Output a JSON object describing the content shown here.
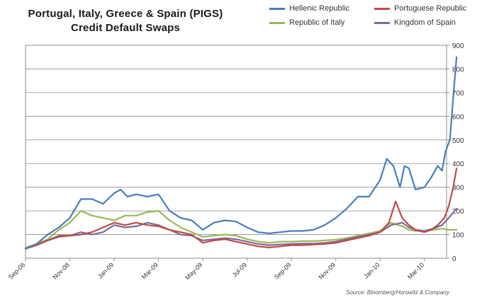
{
  "chart_data": {
    "type": "line",
    "title_line1": "Portugal, Italy, Greece & Spain (PIGS)",
    "title_line2": "Credit Default Swaps",
    "source": "Source: Bloomberg/Horowitz & Company",
    "ylim": [
      0,
      900
    ],
    "yticks": [
      0,
      100,
      200,
      300,
      400,
      500,
      600,
      700,
      800,
      900
    ],
    "xlim": [
      0,
      19
    ],
    "xticks": [
      {
        "label": "Sep-08",
        "x": 0
      },
      {
        "label": "Nov-08",
        "x": 2
      },
      {
        "label": "Jan-09",
        "x": 4
      },
      {
        "label": "Mar-09",
        "x": 6
      },
      {
        "label": "May-09",
        "x": 8
      },
      {
        "label": "Jul-09",
        "x": 10
      },
      {
        "label": "Sep-09",
        "x": 12
      },
      {
        "label": "Nov-09",
        "x": 14
      },
      {
        "label": "Jan-10",
        "x": 16
      },
      {
        "label": "Mar-10",
        "x": 18
      }
    ],
    "series": [
      {
        "name": "Hellenic Republic",
        "color": "#4a7ebb",
        "points": [
          [
            0,
            40
          ],
          [
            0.5,
            60
          ],
          [
            1,
            100
          ],
          [
            1.5,
            130
          ],
          [
            2,
            170
          ],
          [
            2.5,
            250
          ],
          [
            3,
            250
          ],
          [
            3.5,
            230
          ],
          [
            4,
            275
          ],
          [
            4.3,
            290
          ],
          [
            4.6,
            260
          ],
          [
            5,
            270
          ],
          [
            5.5,
            260
          ],
          [
            6,
            270
          ],
          [
            6.5,
            200
          ],
          [
            7,
            170
          ],
          [
            7.5,
            160
          ],
          [
            8,
            120
          ],
          [
            8.5,
            150
          ],
          [
            9,
            160
          ],
          [
            9.5,
            155
          ],
          [
            10,
            130
          ],
          [
            10.5,
            110
          ],
          [
            11,
            105
          ],
          [
            11.5,
            110
          ],
          [
            12,
            115
          ],
          [
            12.5,
            115
          ],
          [
            13,
            120
          ],
          [
            13.5,
            140
          ],
          [
            14,
            170
          ],
          [
            14.5,
            210
          ],
          [
            15,
            260
          ],
          [
            15.5,
            260
          ],
          [
            16,
            330
          ],
          [
            16.3,
            420
          ],
          [
            16.6,
            390
          ],
          [
            16.9,
            300
          ],
          [
            17.1,
            390
          ],
          [
            17.3,
            380
          ],
          [
            17.6,
            290
          ],
          [
            18,
            300
          ],
          [
            18.3,
            340
          ],
          [
            18.6,
            390
          ],
          [
            18.8,
            370
          ],
          [
            18.95,
            450
          ],
          [
            19.15,
            500
          ],
          [
            19.3,
            680
          ],
          [
            19.45,
            850
          ]
        ]
      },
      {
        "name": "Portuguese Republic",
        "color": "#be4b48",
        "points": [
          [
            0,
            40
          ],
          [
            0.5,
            55
          ],
          [
            1,
            75
          ],
          [
            1.5,
            95
          ],
          [
            2,
            95
          ],
          [
            2.5,
            100
          ],
          [
            3,
            110
          ],
          [
            3.5,
            130
          ],
          [
            4,
            150
          ],
          [
            4.5,
            140
          ],
          [
            5,
            150
          ],
          [
            5.5,
            140
          ],
          [
            6,
            135
          ],
          [
            6.5,
            120
          ],
          [
            7,
            110
          ],
          [
            7.5,
            100
          ],
          [
            8,
            65
          ],
          [
            8.5,
            75
          ],
          [
            9,
            80
          ],
          [
            9.5,
            70
          ],
          [
            10,
            60
          ],
          [
            10.5,
            50
          ],
          [
            11,
            45
          ],
          [
            11.5,
            50
          ],
          [
            12,
            55
          ],
          [
            12.5,
            55
          ],
          [
            13,
            58
          ],
          [
            13.5,
            60
          ],
          [
            14,
            65
          ],
          [
            14.5,
            75
          ],
          [
            15,
            85
          ],
          [
            15.5,
            95
          ],
          [
            16,
            110
          ],
          [
            16.4,
            150
          ],
          [
            16.7,
            240
          ],
          [
            17,
            170
          ],
          [
            17.3,
            140
          ],
          [
            17.6,
            120
          ],
          [
            18,
            110
          ],
          [
            18.3,
            120
          ],
          [
            18.6,
            140
          ],
          [
            18.9,
            170
          ],
          [
            19.1,
            220
          ],
          [
            19.3,
            300
          ],
          [
            19.45,
            380
          ]
        ]
      },
      {
        "name": "Republic of Italy",
        "color": "#98b954",
        "points": [
          [
            0,
            45
          ],
          [
            0.5,
            60
          ],
          [
            1,
            80
          ],
          [
            1.5,
            120
          ],
          [
            2,
            150
          ],
          [
            2.5,
            200
          ],
          [
            3,
            180
          ],
          [
            3.5,
            170
          ],
          [
            4,
            160
          ],
          [
            4.5,
            180
          ],
          [
            5,
            180
          ],
          [
            5.5,
            195
          ],
          [
            6,
            200
          ],
          [
            6.5,
            160
          ],
          [
            7,
            130
          ],
          [
            7.5,
            110
          ],
          [
            8,
            90
          ],
          [
            8.5,
            95
          ],
          [
            9,
            100
          ],
          [
            9.5,
            95
          ],
          [
            10,
            80
          ],
          [
            10.5,
            70
          ],
          [
            11,
            65
          ],
          [
            11.5,
            70
          ],
          [
            12,
            70
          ],
          [
            12.5,
            72
          ],
          [
            13,
            72
          ],
          [
            13.5,
            75
          ],
          [
            14,
            78
          ],
          [
            14.5,
            85
          ],
          [
            15,
            95
          ],
          [
            15.5,
            105
          ],
          [
            16,
            115
          ],
          [
            16.5,
            150
          ],
          [
            17,
            135
          ],
          [
            17.3,
            120
          ],
          [
            17.6,
            115
          ],
          [
            18,
            115
          ],
          [
            18.4,
            120
          ],
          [
            18.8,
            125
          ],
          [
            19.1,
            120
          ],
          [
            19.45,
            120
          ]
        ]
      },
      {
        "name": "Kingdom of Spain",
        "color": "#7e6a9a",
        "points": [
          [
            0,
            40
          ],
          [
            0.5,
            55
          ],
          [
            1,
            75
          ],
          [
            1.5,
            90
          ],
          [
            2,
            95
          ],
          [
            2.5,
            110
          ],
          [
            3,
            100
          ],
          [
            3.5,
            110
          ],
          [
            4,
            140
          ],
          [
            4.5,
            130
          ],
          [
            5,
            135
          ],
          [
            5.5,
            150
          ],
          [
            6,
            140
          ],
          [
            6.5,
            120
          ],
          [
            7,
            100
          ],
          [
            7.5,
            95
          ],
          [
            8,
            75
          ],
          [
            8.5,
            80
          ],
          [
            9,
            85
          ],
          [
            9.5,
            80
          ],
          [
            10,
            70
          ],
          [
            10.5,
            60
          ],
          [
            11,
            55
          ],
          [
            11.5,
            58
          ],
          [
            12,
            60
          ],
          [
            12.5,
            62
          ],
          [
            13,
            62
          ],
          [
            13.5,
            65
          ],
          [
            14,
            70
          ],
          [
            14.5,
            80
          ],
          [
            15,
            90
          ],
          [
            15.5,
            100
          ],
          [
            16,
            110
          ],
          [
            16.5,
            140
          ],
          [
            17,
            150
          ],
          [
            17.3,
            130
          ],
          [
            17.6,
            120
          ],
          [
            18,
            115
          ],
          [
            18.4,
            125
          ],
          [
            18.8,
            140
          ],
          [
            19.1,
            170
          ],
          [
            19.45,
            210
          ]
        ]
      }
    ]
  }
}
